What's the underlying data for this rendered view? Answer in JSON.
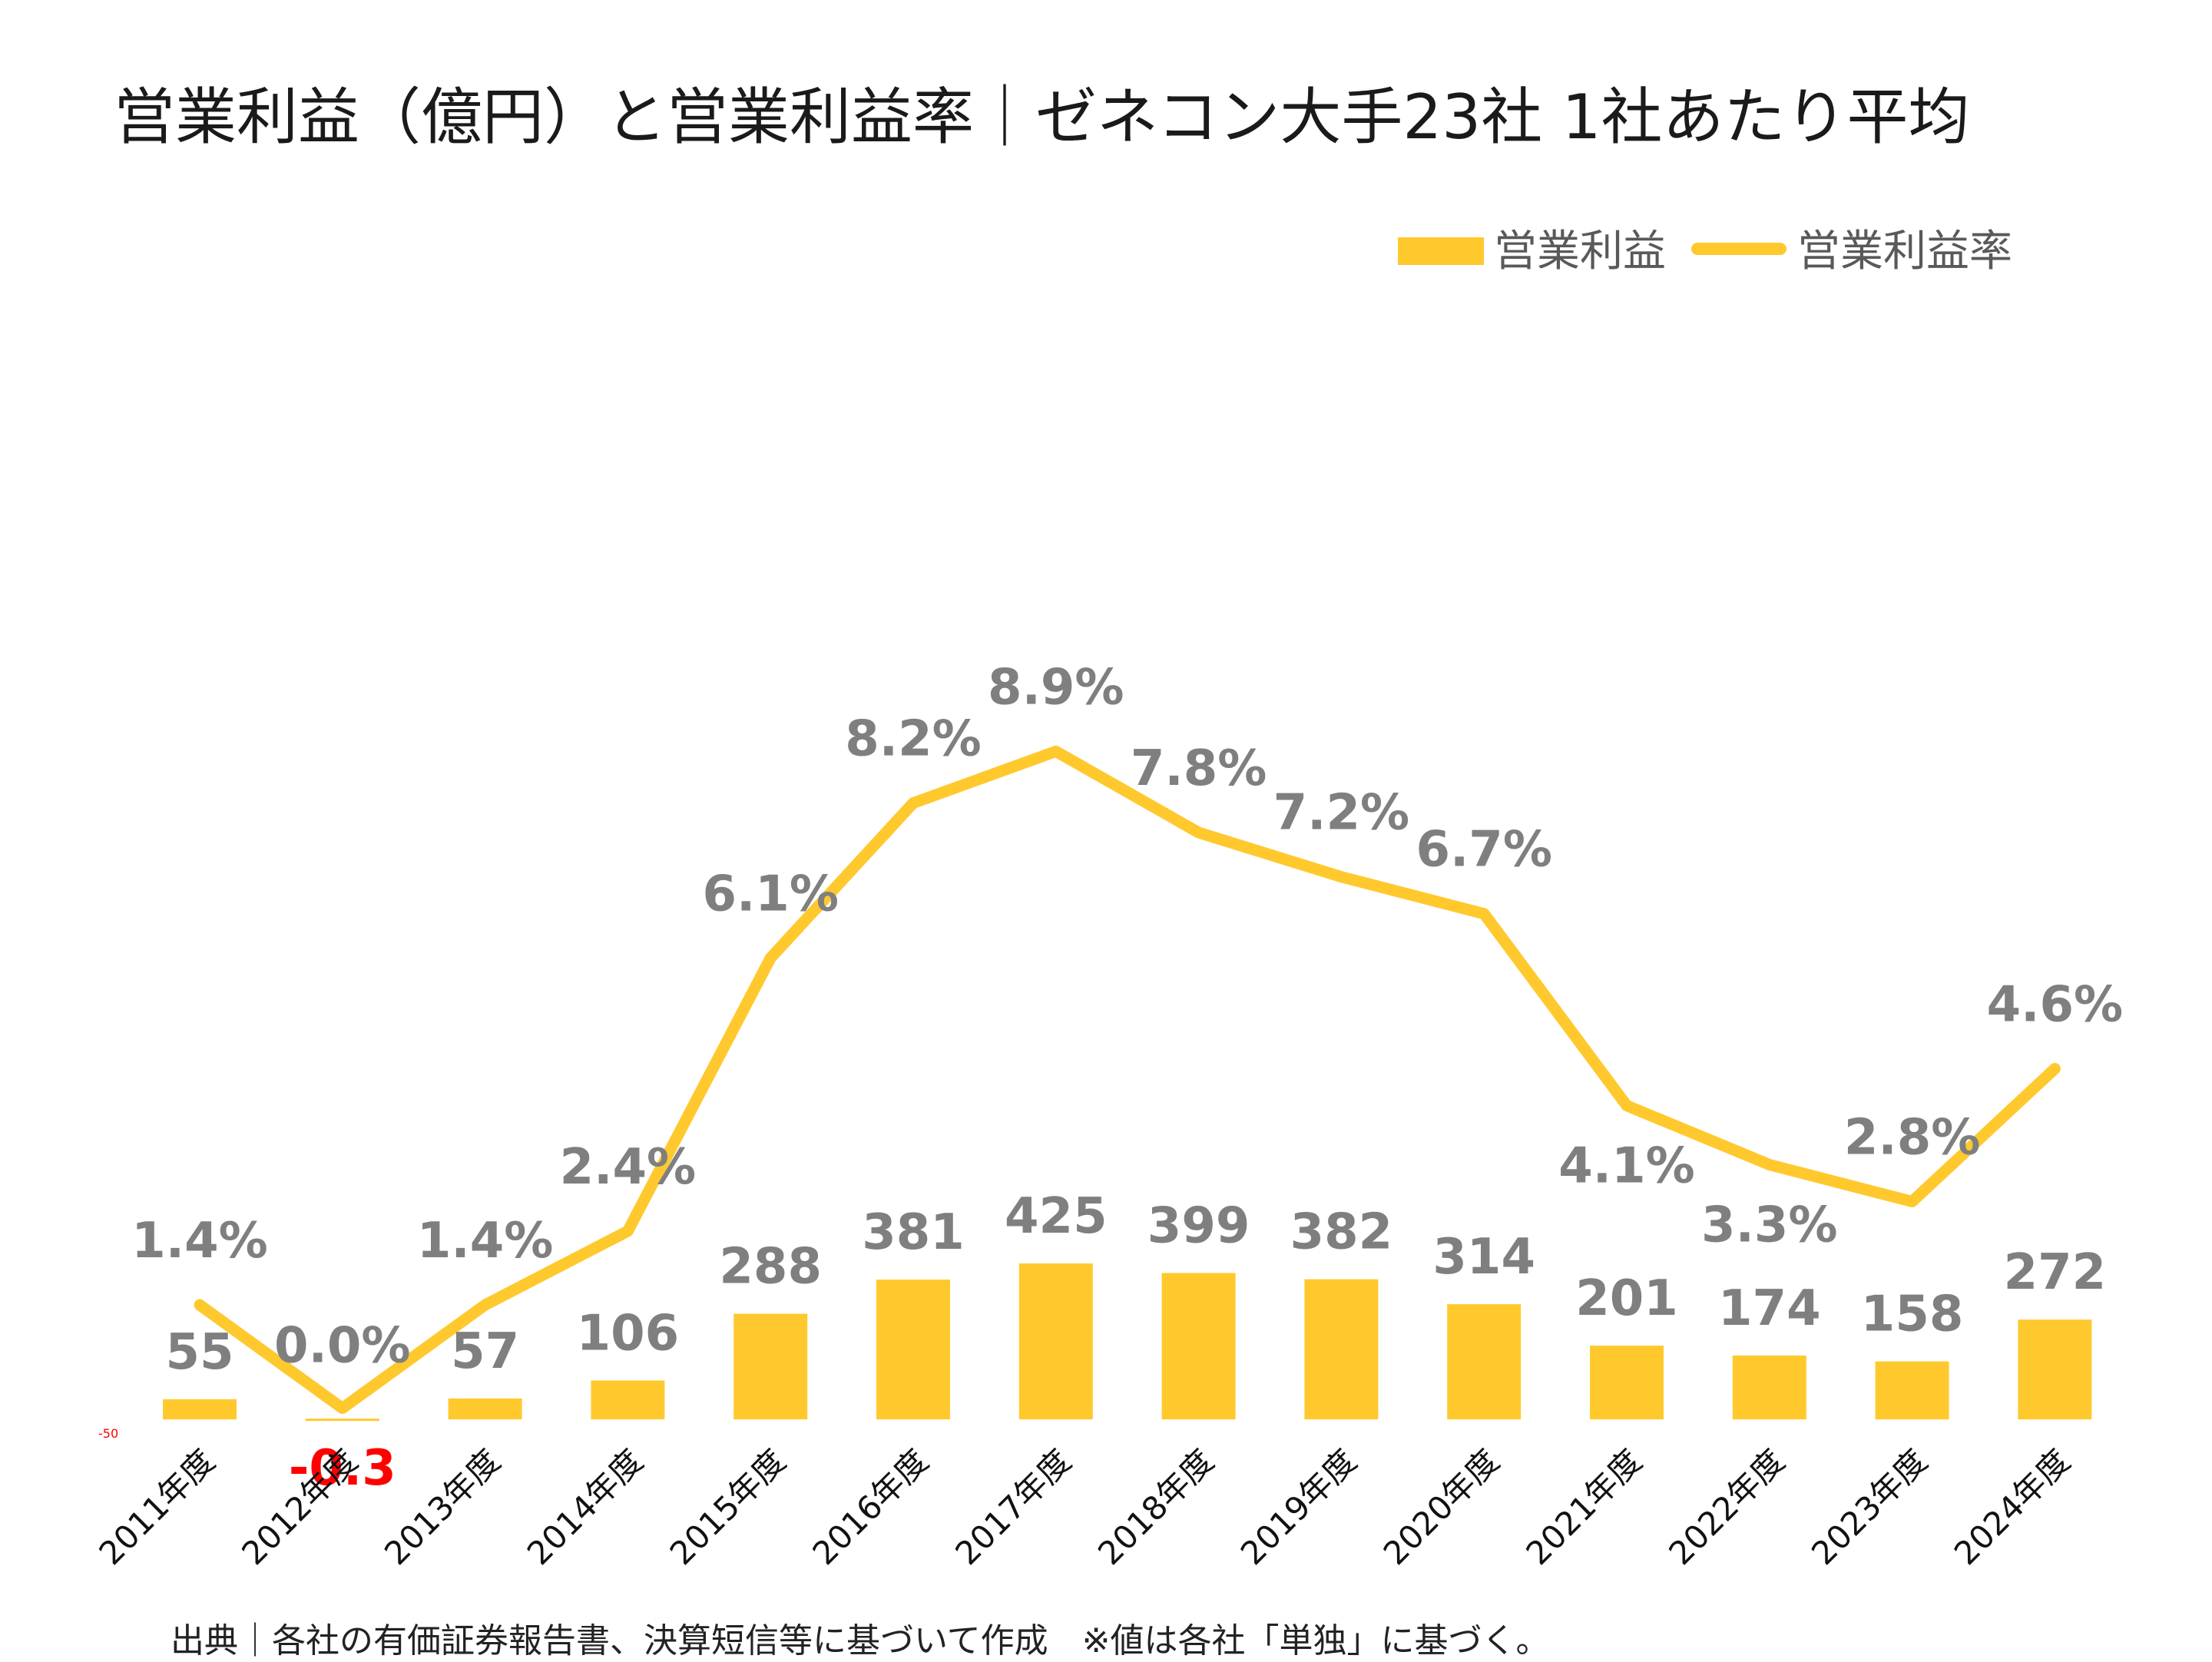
{
  "title": "営業利益（億円）と営業利益率｜ゼネコン大手23社 1社あたり平均",
  "source": "出典｜各社の有価証券報告書、決算短信等に基づいて作成　※値は各社「単独」に基づく。",
  "colors": {
    "accent": "#FFC92E",
    "label": "#7F7F7F",
    "negative": "#FF0000"
  },
  "chart_data": {
    "type": "bar+line",
    "title": "営業利益（億円）と営業利益率｜ゼネコン大手23社 1社あたり平均",
    "categories": [
      "2011年度",
      "2012年度",
      "2013年度",
      "2014年度",
      "2015年度",
      "2016年度",
      "2017年度",
      "2018年度",
      "2019年度",
      "2020年度",
      "2021年度",
      "2022年度",
      "2023年度",
      "2024年度"
    ],
    "series": [
      {
        "name": "営業利益",
        "type": "bar",
        "axis": "left",
        "values": [
          55,
          -0.3,
          57,
          106,
          288,
          381,
          425,
          399,
          382,
          314,
          201,
          174,
          158,
          272
        ],
        "labels": [
          "55",
          "-0.3",
          "57",
          "106",
          "288",
          "381",
          "425",
          "399",
          "382",
          "314",
          "201",
          "174",
          "158",
          "272"
        ]
      },
      {
        "name": "営業利益率",
        "type": "line",
        "axis": "right",
        "values": [
          1.4,
          0.0,
          1.4,
          2.4,
          6.1,
          8.2,
          8.9,
          7.8,
          7.2,
          6.7,
          4.1,
          3.3,
          2.8,
          4.6
        ],
        "labels": [
          "1.4%",
          "0.0%",
          "1.4%",
          "2.4%",
          "6.1%",
          "8.2%",
          "8.9%",
          "7.8%",
          "7.2%",
          "6.7%",
          "4.1%",
          "3.3%",
          "2.8%",
          "4.6%"
        ]
      }
    ],
    "y_left": {
      "min": -50,
      "max": 3450,
      "tick_min_label": "-50"
    },
    "y_right": {
      "min": -0.4,
      "max": 17
    },
    "legend": {
      "position": "top-right",
      "entries": [
        "営業利益",
        "営業利益率"
      ]
    },
    "grid": false
  }
}
